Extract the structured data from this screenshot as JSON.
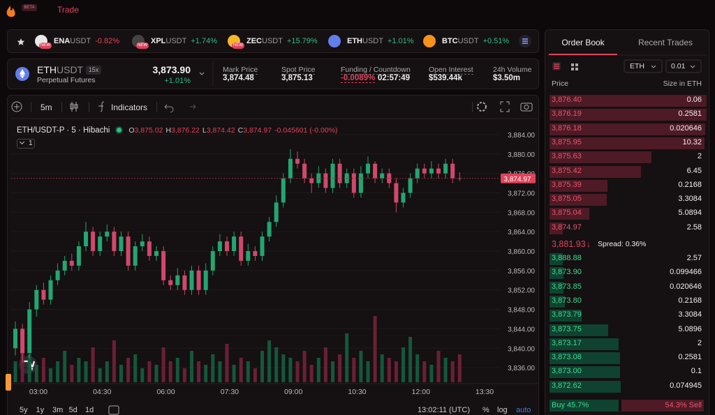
{
  "header": {
    "badge": "BETA",
    "nav": "Trade"
  },
  "tickers": [
    {
      "symbol": "ENA",
      "quote": "USDT",
      "change": "-0.82%",
      "tag": "NEW"
    },
    {
      "symbol": "XPL",
      "quote": "USDT",
      "change": "+1.74%",
      "tag": "NEW"
    },
    {
      "symbol": "ZEC",
      "quote": "USDT",
      "change": "+15.79%",
      "tag": "NEW"
    },
    {
      "symbol": "ETH",
      "quote": "USDT",
      "change": "+1.01%"
    },
    {
      "symbol": "BTC",
      "quote": "USDT",
      "change": "+0.51%"
    }
  ],
  "market": {
    "base": "ETH",
    "quote": "USDT",
    "leverage": "15x",
    "kind": "Perpetual Futures",
    "price": "3,873.90",
    "change": "+1.01%",
    "stats": [
      {
        "label": "Mark Price",
        "value": "3,874.48"
      },
      {
        "label": "Spot Price",
        "value": "3,875.13"
      },
      {
        "label": "Funding / Countdown",
        "value": "-0.0089%",
        "extra": "02:57:49"
      },
      {
        "label": "Open Interest",
        "value": "$539.44k"
      },
      {
        "label": "24h Volume",
        "value": "$3.50m"
      }
    ]
  },
  "toolbar": {
    "interval": "5m",
    "indicators": "Indicators"
  },
  "legend": {
    "title": "ETH/USDT-P · 5 · Hibachi",
    "ohlc": [
      {
        "key": "O",
        "value": "3,875.02"
      },
      {
        "key": "H",
        "value": "3,876.22"
      },
      {
        "key": "L",
        "value": "3,874.42"
      },
      {
        "key": "C",
        "value": "3,874.97"
      }
    ],
    "change": "-0.045601 (-0.00%)",
    "pane": "1"
  },
  "chart_data": {
    "type": "candlestick",
    "open": [
      3840,
      3844,
      3839,
      3848,
      3852,
      3850,
      3854,
      3856,
      3858,
      3857,
      3861,
      3864,
      3860,
      3863,
      3864,
      3860,
      3863,
      3857,
      3861,
      3862,
      3859,
      3860,
      3854,
      3853,
      3855,
      3852,
      3856,
      3852,
      3856,
      3860,
      3862,
      3860,
      3863,
      3858,
      3860,
      3859,
      3863,
      3866,
      3870,
      3875,
      3879,
      3878,
      3875,
      3874,
      3876,
      3873,
      3878,
      3874,
      3876,
      3872,
      3876,
      3878,
      3875,
      3876,
      3874,
      3870,
      3872,
      3875,
      3877,
      3876,
      3877,
      3876,
      3878,
      3875.02
    ],
    "high": [
      3845.5,
      3845,
      3849.5,
      3853,
      3853.5,
      3855,
      3857.5,
      3859,
      3859.5,
      3862,
      3866,
      3865,
      3864,
      3865.5,
      3865,
      3864,
      3864,
      3862,
      3863.5,
      3863,
      3861,
      3861,
      3855,
      3856.5,
      3856,
      3857,
      3857,
      3857.5,
      3861,
      3863.5,
      3863,
      3864,
      3864,
      3861.5,
      3861,
      3864,
      3867,
      3871.5,
      3876,
      3881,
      3880.5,
      3879,
      3876,
      3877.5,
      3877,
      3879,
      3879,
      3877,
      3877,
      3877.5,
      3879.5,
      3878.5,
      3877,
      3877,
      3875,
      3873,
      3876,
      3878,
      3878,
      3878.5,
      3878,
      3879,
      3879,
      3876.22
    ],
    "low": [
      3838.5,
      3837,
      3838,
      3846.5,
      3849,
      3849,
      3853,
      3855,
      3856,
      3856,
      3860,
      3859,
      3859,
      3862,
      3859,
      3859,
      3856,
      3856,
      3860,
      3858,
      3858,
      3853,
      3852,
      3852,
      3851,
      3851,
      3851,
      3851,
      3855,
      3859,
      3859,
      3859,
      3857,
      3857,
      3858,
      3858,
      3862,
      3865,
      3869,
      3874,
      3877,
      3874,
      3872,
      3873,
      3872,
      3872,
      3873,
      3873,
      3871,
      3871,
      3875,
      3874,
      3874,
      3873,
      3868,
      3869,
      3871,
      3874,
      3875,
      3875,
      3875,
      3875,
      3874,
      3874.42
    ],
    "close": [
      3844,
      3839,
      3848,
      3852,
      3850,
      3854,
      3856,
      3858,
      3857,
      3861,
      3864,
      3860,
      3863,
      3864,
      3860,
      3863,
      3857,
      3861,
      3862,
      3859,
      3860,
      3854,
      3853,
      3855,
      3852,
      3856,
      3852,
      3856,
      3860,
      3862,
      3860,
      3863,
      3858,
      3860,
      3859,
      3863,
      3866,
      3870,
      3875,
      3879,
      3878,
      3875,
      3874,
      3876,
      3873,
      3878,
      3874,
      3876,
      3872,
      3876,
      3878,
      3875,
      3876,
      3874,
      3870,
      3872,
      3875,
      3877,
      3876,
      3877,
      3876,
      3878,
      3875,
      3874.97
    ],
    "volume": [
      30,
      55,
      40,
      25,
      35,
      20,
      30,
      45,
      25,
      35,
      30,
      50,
      20,
      30,
      60,
      25,
      35,
      40,
      20,
      30,
      25,
      50,
      30,
      35,
      20,
      45,
      30,
      25,
      40,
      30,
      55,
      25,
      35,
      30,
      20,
      45,
      60,
      50,
      40,
      35,
      30,
      45,
      25,
      35,
      50,
      30,
      40,
      70,
      35,
      45,
      30,
      95,
      40,
      35,
      30,
      50,
      65,
      40,
      30,
      25,
      45,
      35,
      30,
      40
    ],
    "ylim": [
      3833,
      3886
    ],
    "yticks": [
      {
        "value": 3836,
        "label": "3,836.00"
      },
      {
        "value": 3840,
        "label": "3,840.00"
      },
      {
        "value": 3844,
        "label": "3,844.00"
      },
      {
        "value": 3848,
        "label": "3,848.00"
      },
      {
        "value": 3852,
        "label": "3,852.00"
      },
      {
        "value": 3856,
        "label": "3,856.00"
      },
      {
        "value": 3860,
        "label": "3,860.00"
      },
      {
        "value": 3864,
        "label": "3,864.00"
      },
      {
        "value": 3868,
        "label": "3,868.00"
      },
      {
        "value": 3872,
        "label": "3,872.00"
      },
      {
        "value": 3876,
        "label": "3,876.00"
      },
      {
        "value": 3880,
        "label": "3,880.00"
      },
      {
        "value": 3884,
        "label": "3,884.00"
      }
    ],
    "last_price": {
      "value": 3874.97,
      "label": "3,874.97"
    },
    "x_labels": [
      "03:00",
      "04:30",
      "06:00",
      "07:30",
      "09:00",
      "10:30",
      "12:00",
      "13:30"
    ]
  },
  "bottom_bar": {
    "ranges": [
      "5y",
      "1y",
      "3m",
      "5d",
      "1d"
    ],
    "clock": "13:02:11 (UTC)",
    "options": [
      "%",
      "log",
      "auto"
    ]
  },
  "order_book": {
    "tabs": [
      "Order Book",
      "Recent Trades"
    ],
    "asset": "ETH",
    "step": "0.01",
    "columns": [
      "Price",
      "Size in ETH"
    ],
    "asks": [
      {
        "price": "3,876.40",
        "size": 0.06
      },
      {
        "price": "3,876.19",
        "size": 0.2581
      },
      {
        "price": "3,876.18",
        "size": 0.020646
      },
      {
        "price": "3,875.95",
        "size": 10.32
      },
      {
        "price": "3,875.63",
        "size": 2
      },
      {
        "price": "3,875.42",
        "size": 6.45
      },
      {
        "price": "3,875.39",
        "size": 0.2168
      },
      {
        "price": "3,875.05",
        "size": 3.3084
      },
      {
        "price": "3,875.04",
        "size": 5.0894
      },
      {
        "price": "3,874.97",
        "size": 2.58
      }
    ],
    "mid": {
      "price": "3,881.93",
      "arrow": "↓",
      "spread": "Spread: 0.36%"
    },
    "bids": [
      {
        "price": "3,888.88",
        "size": 2.57
      },
      {
        "price": "3,873.90",
        "size": 0.099466
      },
      {
        "price": "3,873.85",
        "size": 0.020646
      },
      {
        "price": "3,873.80",
        "size": 0.2168
      },
      {
        "price": "3,873.79",
        "size": 3.3084
      },
      {
        "price": "3,873.75",
        "size": 5.0896
      },
      {
        "price": "3,873.17",
        "size": 2
      },
      {
        "price": "3,873.08",
        "size": 0.2581
      },
      {
        "price": "3,873.00",
        "size": 0.1
      },
      {
        "price": "3,872.62",
        "size": 0.074945
      }
    ],
    "ratio": {
      "buy": {
        "value": 45.7,
        "label": "Buy 45.7%"
      },
      "sell": {
        "value": 54.3,
        "label": "54.3% Sell"
      }
    }
  }
}
